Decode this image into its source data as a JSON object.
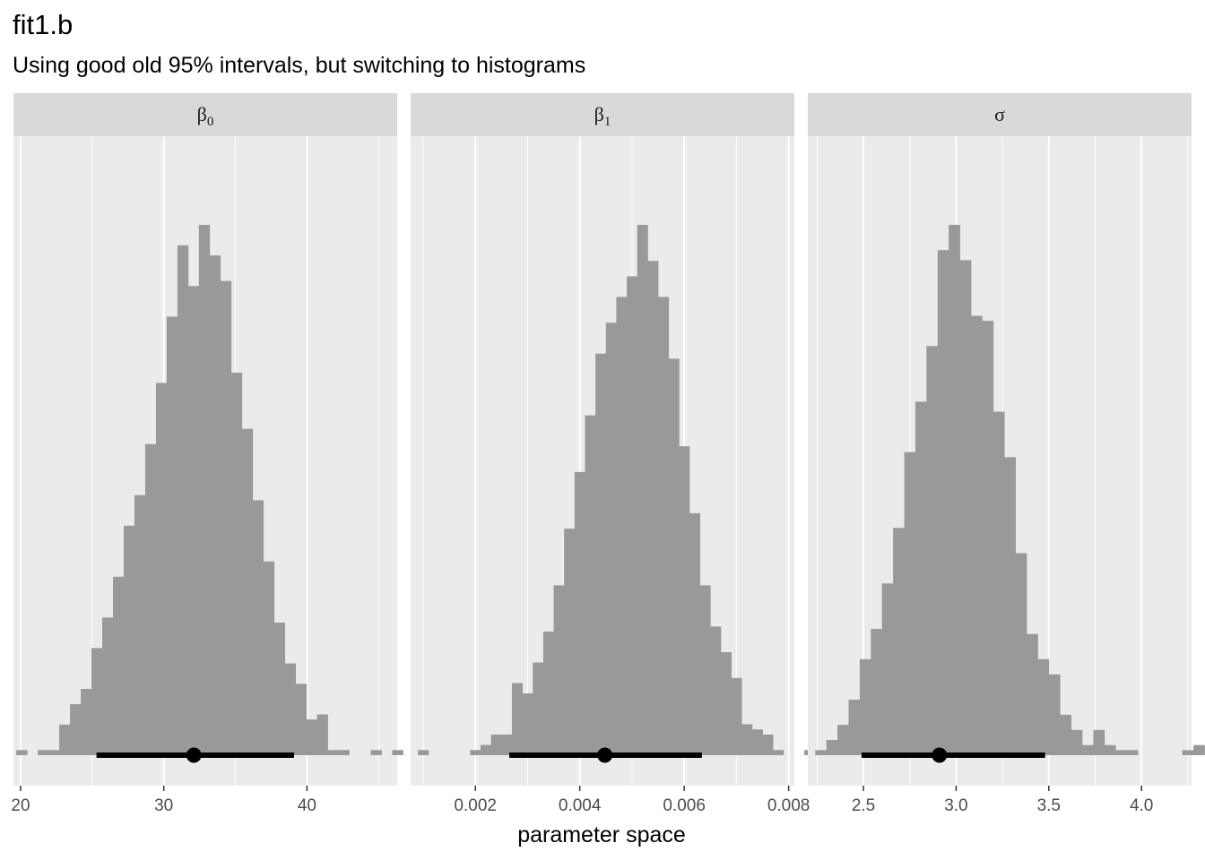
{
  "chart": {
    "title": "fit1.b",
    "subtitle": "Using good old 95% intervals, but switching to histograms",
    "xlabel": "parameter space"
  },
  "colors": {
    "panel_background": "#ebebeb",
    "strip_background": "#d9d9d9",
    "histogram_fill": "#999999",
    "interval": "#000000",
    "gridline": "#ffffff"
  },
  "chart_data": [
    {
      "type": "histogram",
      "facet": "β0",
      "facet_main": "β",
      "facet_sub": "0",
      "xlim": [
        19.5,
        46.3
      ],
      "xticks": [
        20,
        30,
        40
      ],
      "xtick_labels": [
        "20",
        "30",
        "40"
      ],
      "bin_width": 0.75,
      "bins_start": 19.7,
      "counts": [
        1,
        0,
        1,
        1,
        6,
        10,
        13,
        21,
        27,
        35,
        45,
        51,
        61,
        73,
        86,
        100,
        92,
        104,
        98,
        93,
        75,
        64,
        50,
        38,
        26,
        18,
        14,
        7,
        8,
        1,
        1,
        0,
        0,
        1,
        0,
        1
      ],
      "point": 32.1,
      "interval_95": [
        25.3,
        39.1
      ],
      "grid": true
    },
    {
      "type": "histogram",
      "facet": "β1",
      "facet_main": "β",
      "facet_sub": "1",
      "xlim": [
        0.00076,
        0.00811
      ],
      "xticks": [
        0.002,
        0.004,
        0.006,
        0.008
      ],
      "xtick_labels": [
        "0.002",
        "0.004",
        "0.006",
        "0.008"
      ],
      "bin_width": 0.0002,
      "bins_start": 0.0009,
      "counts": [
        1,
        0,
        0,
        0,
        0,
        1,
        2,
        4,
        4,
        14,
        12,
        18,
        24,
        33,
        44,
        55,
        66,
        78,
        84,
        89,
        93,
        103,
        96,
        89,
        77,
        60,
        47,
        33,
        25,
        20,
        15,
        6,
        5,
        4,
        1,
        0,
        0,
        1
      ],
      "point": 0.00448,
      "interval_95": [
        0.00265,
        0.00634
      ],
      "grid": true
    },
    {
      "type": "histogram",
      "facet": "σ",
      "facet_main": "σ",
      "facet_sub": "",
      "xlim": [
        2.2,
        4.27
      ],
      "xticks": [
        2.5,
        3.0,
        3.5,
        4.0
      ],
      "xtick_labels": [
        "2.5",
        "3.0",
        "3.5",
        "4.0"
      ],
      "bin_width": 0.06,
      "bins_start": 2.24,
      "counts": [
        1,
        3,
        6,
        11,
        19,
        25,
        34,
        45,
        60,
        70,
        81,
        100,
        105,
        98,
        87,
        86,
        68,
        59,
        40,
        24,
        19,
        16,
        8,
        5,
        2,
        5,
        2,
        1,
        1,
        0,
        0,
        0,
        0,
        1,
        2
      ],
      "point": 2.91,
      "interval_95": [
        2.49,
        3.48
      ],
      "grid": true
    }
  ]
}
